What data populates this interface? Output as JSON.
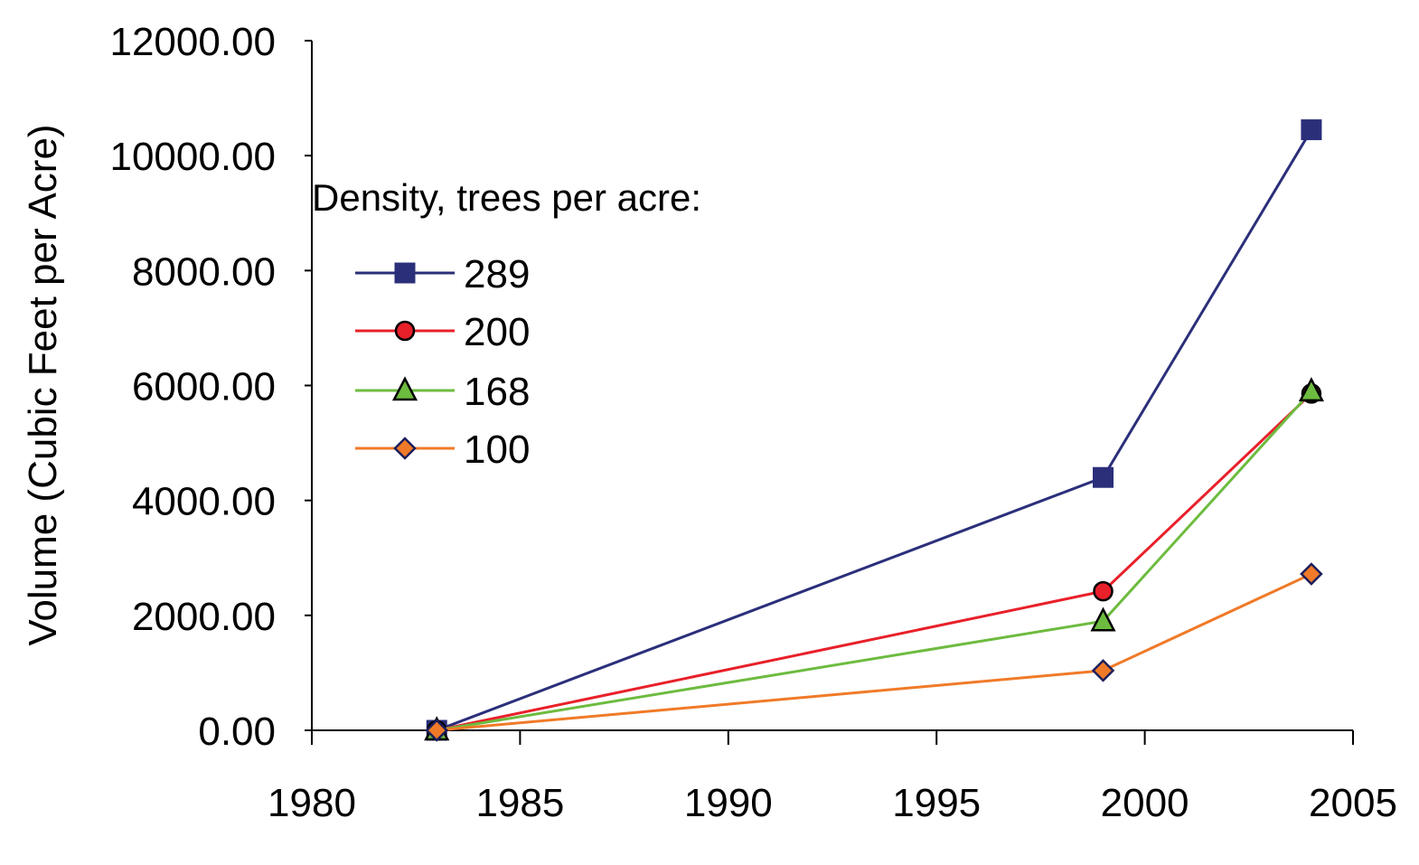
{
  "chart_data": {
    "type": "line",
    "title": "",
    "xlabel": "",
    "ylabel": "Volume (Cubic Feet per Acre)",
    "xlim": [
      1980,
      2005
    ],
    "ylim": [
      0,
      12000
    ],
    "x_ticks": [
      "1980",
      "1985",
      "1990",
      "1995",
      "2000",
      "2005"
    ],
    "y_ticks": [
      "0.00",
      "2000.00",
      "4000.00",
      "6000.00",
      "8000.00",
      "10000.00",
      "12000.00"
    ],
    "grid": false,
    "legend": {
      "title": "Density, trees per acre:",
      "placement": "upper-left"
    },
    "series": [
      {
        "name": "289",
        "color": "#2b2f7a",
        "marker": "square",
        "x": [
          1983,
          1999,
          2004
        ],
        "y": [
          0,
          4400,
          10450
        ]
      },
      {
        "name": "200",
        "color": "#e8202a",
        "marker": "circle",
        "x": [
          1983,
          1999,
          2004
        ],
        "y": [
          0,
          2420,
          5860
        ]
      },
      {
        "name": "168",
        "color": "#6dbb3f",
        "marker": "triangle",
        "x": [
          1983,
          1999,
          2004
        ],
        "y": [
          0,
          1900,
          5900
        ]
      },
      {
        "name": "100",
        "color": "#f07a28",
        "marker": "diamond",
        "x": [
          1983,
          1999,
          2004
        ],
        "y": [
          0,
          1040,
          2720
        ]
      }
    ]
  }
}
